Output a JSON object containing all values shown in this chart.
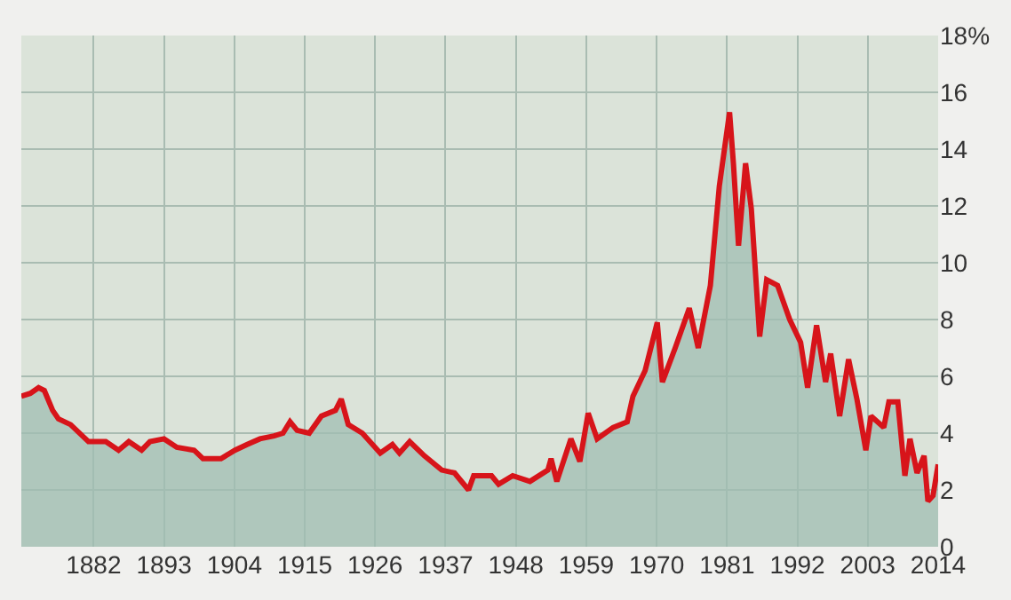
{
  "chart_data": {
    "type": "area",
    "x": [
      1870.7,
      1872.1,
      1873.4,
      1874.3,
      1875.6,
      1876.5,
      1878.4,
      1881.2,
      1883.9,
      1885.9,
      1887.5,
      1889.5,
      1890.8,
      1893.0,
      1895.0,
      1897.7,
      1899.1,
      1901.9,
      1904.1,
      1906.0,
      1908.0,
      1910.2,
      1911.6,
      1912.7,
      1913.8,
      1915.7,
      1917.6,
      1919.8,
      1920.7,
      1921.8,
      1924.0,
      1926.8,
      1928.7,
      1929.8,
      1931.4,
      1933.7,
      1936.4,
      1938.4,
      1940.6,
      1941.4,
      1944.2,
      1945.3,
      1947.5,
      1950.2,
      1953.0,
      1953.5,
      1954.4,
      1956.6,
      1958.0,
      1959.3,
      1960.7,
      1963.2,
      1965.4,
      1966.3,
      1968.2,
      1970.1,
      1970.9,
      1972.9,
      1975.1,
      1976.5,
      1978.4,
      1979.8,
      1981.4,
      1982.0,
      1982.8,
      1983.9,
      1984.8,
      1986.1,
      1987.2,
      1988.9,
      1990.8,
      1992.5,
      1993.6,
      1995.0,
      1996.4,
      1997.2,
      1998.6,
      2000.0,
      2001.3,
      2002.7,
      2003.5,
      2005.5,
      2006.3,
      2007.7,
      2008.8,
      2009.6,
      2010.7,
      2011.8,
      2012.4,
      2013.2,
      2014.0
    ],
    "series": [
      {
        "color": "#d7141a",
        "values": [
          5.3,
          5.4,
          5.6,
          5.5,
          4.8,
          4.5,
          4.3,
          3.7,
          3.7,
          3.4,
          3.7,
          3.4,
          3.7,
          3.8,
          3.5,
          3.4,
          3.1,
          3.1,
          3.4,
          3.6,
          3.8,
          3.9,
          4.0,
          4.4,
          4.1,
          4.0,
          4.6,
          4.8,
          5.2,
          4.3,
          4.0,
          3.3,
          3.6,
          3.3,
          3.7,
          3.2,
          2.7,
          2.6,
          2.0,
          2.5,
          2.5,
          2.2,
          2.5,
          2.3,
          2.7,
          3.1,
          2.3,
          3.8,
          3.0,
          4.7,
          3.8,
          4.2,
          4.4,
          5.3,
          6.2,
          7.9,
          5.8,
          7.0,
          8.4,
          7.0,
          9.2,
          12.7,
          15.3,
          13.5,
          10.6,
          13.5,
          11.9,
          7.4,
          9.4,
          9.2,
          8.0,
          7.2,
          5.6,
          7.8,
          5.8,
          6.8,
          4.6,
          6.6,
          5.2,
          3.4,
          4.6,
          4.2,
          5.1,
          5.1,
          2.5,
          3.8,
          2.6,
          3.2,
          1.6,
          1.8,
          2.9
        ]
      }
    ],
    "xlim": [
      1870.7,
      2014
    ],
    "xticks": [
      1882,
      1893,
      1904,
      1915,
      1926,
      1937,
      1948,
      1959,
      1970,
      1981,
      1992,
      2003,
      2014
    ],
    "ylim": [
      0,
      18
    ],
    "yticks": [
      0,
      2,
      4,
      6,
      8,
      10,
      12,
      14,
      16,
      {
        "value": 18,
        "label": "18%"
      }
    ],
    "grid": true
  }
}
